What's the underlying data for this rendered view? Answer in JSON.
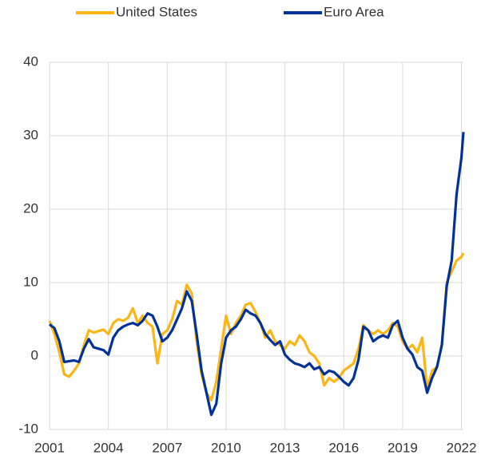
{
  "chart_data": {
    "type": "line",
    "x": [
      2001,
      2001.25,
      2001.5,
      2001.75,
      2002,
      2002.25,
      2002.5,
      2002.75,
      2003,
      2003.25,
      2003.5,
      2003.75,
      2004,
      2004.25,
      2004.5,
      2004.75,
      2005,
      2005.25,
      2005.5,
      2005.75,
      2006,
      2006.25,
      2006.5,
      2006.75,
      2007,
      2007.25,
      2007.5,
      2007.75,
      2008,
      2008.25,
      2008.5,
      2008.75,
      2009,
      2009.25,
      2009.5,
      2009.75,
      2010,
      2010.25,
      2010.5,
      2010.75,
      2011,
      2011.25,
      2011.5,
      2011.75,
      2012,
      2012.25,
      2012.5,
      2012.75,
      2013,
      2013.25,
      2013.5,
      2013.75,
      2014,
      2014.25,
      2014.5,
      2014.75,
      2015,
      2015.25,
      2015.5,
      2015.75,
      2016,
      2016.25,
      2016.5,
      2016.75,
      2017,
      2017.25,
      2017.5,
      2017.75,
      2018,
      2018.25,
      2018.5,
      2018.75,
      2019,
      2019.25,
      2019.5,
      2019.75,
      2020,
      2020.25,
      2020.5,
      2020.75,
      2021,
      2021.25,
      2021.5,
      2021.75,
      2022,
      2022.1
    ],
    "series": [
      {
        "name": "United States",
        "color": "#fbb515",
        "values": [
          4.8,
          3.0,
          0.5,
          -2.5,
          -2.8,
          -2,
          -1,
          1.5,
          3.5,
          3.2,
          3.4,
          3.6,
          3.0,
          4.5,
          5.0,
          4.8,
          5.2,
          6.5,
          4.5,
          5.5,
          4.5,
          4.0,
          -1.0,
          3.0,
          3.5,
          5.0,
          7.5,
          7.0,
          9.7,
          8.5,
          2,
          -2.5,
          -5,
          -6,
          -3.5,
          1.0,
          5.5,
          3.0,
          4.5,
          5.5,
          7.0,
          7.2,
          6.0,
          4.5,
          2.5,
          3.5,
          2.0,
          1.5,
          1.0,
          2.0,
          1.5,
          2.8,
          2.0,
          0.5,
          0,
          -1.0,
          -4.0,
          -3.0,
          -3.5,
          -3.0,
          -2.0,
          -1.5,
          -1.0,
          1.0,
          4.2,
          3.5,
          3.0,
          3.5,
          3.0,
          3.5,
          4.5,
          4.0,
          2.0,
          1.0,
          1.5,
          0.5,
          2.5,
          -4.5,
          -2.0,
          -1.5,
          1.5,
          10.0,
          11.5,
          13.0,
          13.5,
          14.0
        ]
      },
      {
        "name": "Euro Area",
        "color": "#003299",
        "values": [
          4.3,
          3.8,
          2,
          -0.8,
          -0.7,
          -0.6,
          -0.8,
          1,
          2.3,
          1.2,
          1.0,
          0.8,
          0.2,
          2.5,
          3.5,
          4.0,
          4.3,
          4.5,
          4.2,
          4.8,
          5.8,
          5.5,
          4.0,
          2.0,
          2.5,
          3.5,
          5.0,
          6.5,
          8.8,
          7.5,
          3,
          -2,
          -5,
          -8,
          -6.5,
          -1,
          2.5,
          3.5,
          4.0,
          5.0,
          6.3,
          5.8,
          5.5,
          4.5,
          3.0,
          2.2,
          1.5,
          2.0,
          0.2,
          -0.5,
          -1.0,
          -1.2,
          -1.5,
          -1.0,
          -1.8,
          -1.5,
          -2.5,
          -2.0,
          -2.2,
          -2.8,
          -3.5,
          -4.0,
          -3.0,
          -0.5,
          4.0,
          3.5,
          2.0,
          2.5,
          2.8,
          2.5,
          4.2,
          4.8,
          2.5,
          1.0,
          0.2,
          -1.5,
          -2.0,
          -5.0,
          -3.0,
          -1.5,
          1.5,
          9.5,
          13.0,
          22,
          27,
          30.5
        ]
      }
    ],
    "xlim": [
      2001,
      2022.1
    ],
    "xticks": [
      2001,
      2004,
      2007,
      2010,
      2013,
      2016,
      2019,
      2022
    ],
    "ylim": [
      -10,
      40
    ],
    "yticks": [
      -10,
      0,
      10,
      20,
      30,
      40
    ],
    "grid": true,
    "legend": "top"
  }
}
